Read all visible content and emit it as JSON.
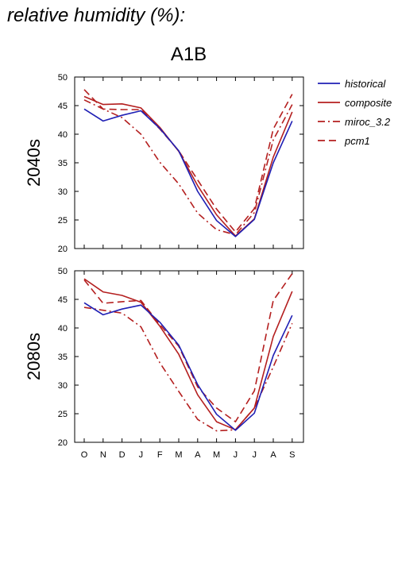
{
  "title": "relative humidity (%):",
  "scenario": "A1B",
  "legend": [
    {
      "key": "historical",
      "label": "historical",
      "color": "#1f1fb4",
      "dash": "solid"
    },
    {
      "key": "composite",
      "label": "composite",
      "color": "#b41f1f",
      "dash": "solid"
    },
    {
      "key": "miroc",
      "label": "miroc_3.2",
      "color": "#b41f1f",
      "dash": "dashdot"
    },
    {
      "key": "pcm1",
      "label": "pcm1",
      "color": "#b41f1f",
      "dash": "dashed"
    }
  ],
  "chart_data": [
    {
      "type": "line",
      "title": "2040s",
      "categories": [
        "O",
        "N",
        "D",
        "J",
        "F",
        "M",
        "A",
        "M",
        "J",
        "J",
        "A",
        "S"
      ],
      "ylim": [
        20,
        50
      ],
      "yticks": [
        20,
        25,
        30,
        35,
        40,
        45,
        50
      ],
      "series": [
        {
          "name": "historical",
          "values": [
            44.4,
            42.3,
            43.3,
            44.1,
            41.0,
            37.1,
            30.0,
            24.9,
            22.1,
            25.1,
            35.0,
            42.3
          ]
        },
        {
          "name": "composite",
          "values": [
            46.6,
            45.2,
            45.3,
            44.6,
            41.2,
            37.0,
            31.0,
            25.9,
            22.2,
            25.2,
            36.0,
            43.9
          ]
        },
        {
          "name": "miroc_3.2",
          "values": [
            46.0,
            44.4,
            42.9,
            40.0,
            35.1,
            31.3,
            26.2,
            23.3,
            22.4,
            26.3,
            39.0,
            45.2
          ]
        },
        {
          "name": "pcm1",
          "values": [
            47.8,
            44.4,
            44.3,
            44.3,
            40.9,
            37.1,
            32.0,
            26.9,
            22.9,
            27.0,
            40.9,
            47.0
          ]
        }
      ]
    },
    {
      "type": "line",
      "title": "2080s",
      "categories": [
        "O",
        "N",
        "D",
        "J",
        "F",
        "M",
        "A",
        "M",
        "J",
        "J",
        "A",
        "S"
      ],
      "ylim": [
        20,
        50
      ],
      "yticks": [
        20,
        25,
        30,
        35,
        40,
        45,
        50
      ],
      "series": [
        {
          "name": "historical",
          "values": [
            44.4,
            42.3,
            43.3,
            44.0,
            41.0,
            37.0,
            30.1,
            24.9,
            22.1,
            25.1,
            35.2,
            42.2
          ]
        },
        {
          "name": "composite",
          "values": [
            48.6,
            46.3,
            45.7,
            44.5,
            40.3,
            35.4,
            28.3,
            23.6,
            22.2,
            26.0,
            38.5,
            46.4
          ]
        },
        {
          "name": "miroc_3.2",
          "values": [
            43.6,
            43.1,
            42.6,
            40.2,
            33.9,
            28.9,
            24.0,
            22.0,
            22.2,
            26.0,
            33.2,
            40.8
          ]
        },
        {
          "name": "pcm1",
          "values": [
            48.4,
            44.3,
            44.6,
            44.8,
            40.6,
            36.8,
            29.7,
            26.0,
            23.6,
            29.0,
            44.8,
            49.5
          ]
        }
      ]
    }
  ]
}
